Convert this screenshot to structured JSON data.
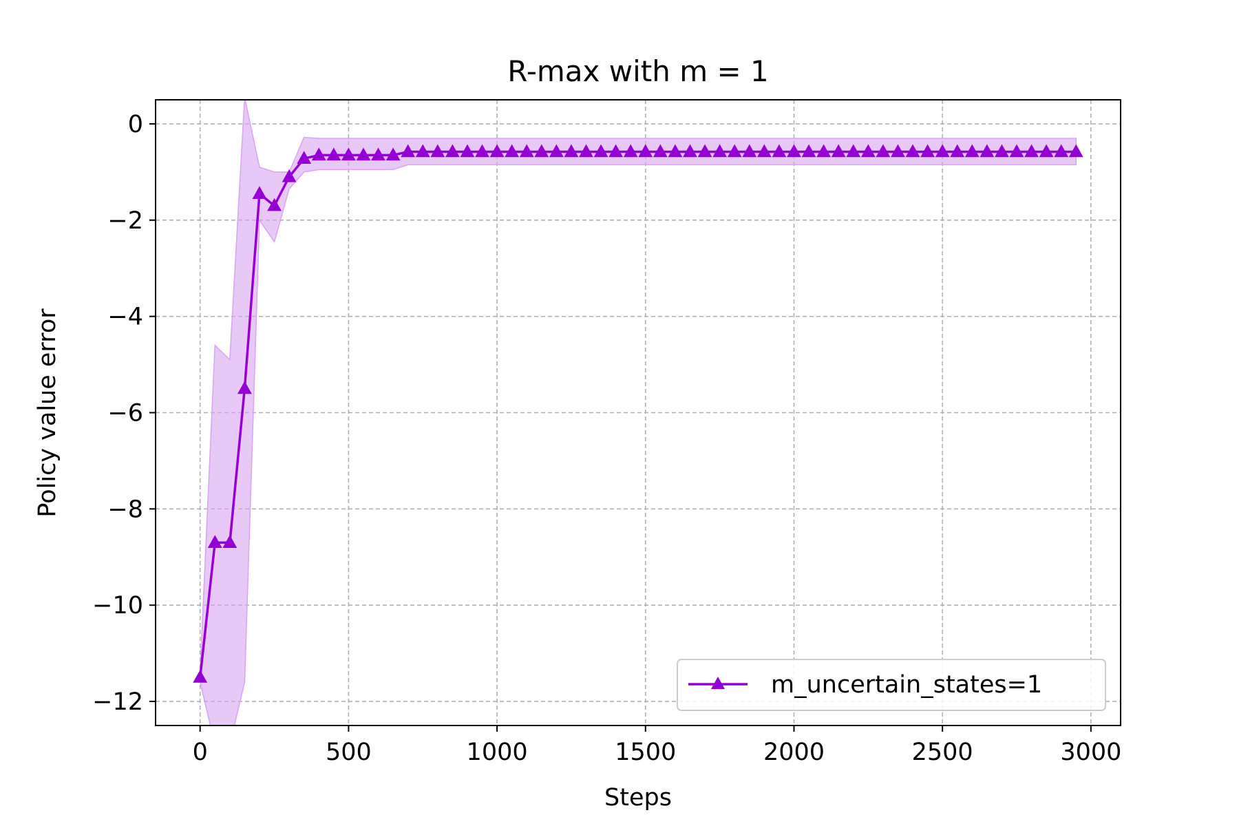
{
  "chart_data": {
    "type": "line",
    "title": "R-max with m = 1",
    "xlabel": "Steps",
    "ylabel": "Policy value error",
    "xlim": [
      -150,
      3100
    ],
    "ylim": [
      -12.5,
      0.5
    ],
    "xticks": [
      0,
      500,
      1000,
      1500,
      2000,
      2500,
      3000
    ],
    "yticks": [
      0,
      -2,
      -4,
      -6,
      -8,
      -10,
      -12
    ],
    "xtick_labels": [
      "0",
      "500",
      "1000",
      "1500",
      "2000",
      "2500",
      "3000"
    ],
    "ytick_labels": [
      "0",
      "−2",
      "−4",
      "−6",
      "−8",
      "−10",
      "−12"
    ],
    "grid": true,
    "legend_position": "lower-right",
    "series": [
      {
        "name": "m_uncertain_states=1",
        "color": "#9400D3",
        "marker": "triangle-up",
        "x": [
          0,
          50,
          100,
          150,
          200,
          250,
          300,
          350,
          400,
          450,
          500,
          550,
          600,
          650,
          700,
          750,
          800,
          850,
          900,
          950,
          1000,
          1050,
          1100,
          1150,
          1200,
          1250,
          1300,
          1350,
          1400,
          1450,
          1500,
          1550,
          1600,
          1650,
          1700,
          1750,
          1800,
          1850,
          1900,
          1950,
          2000,
          2050,
          2100,
          2150,
          2200,
          2250,
          2300,
          2350,
          2400,
          2450,
          2500,
          2550,
          2600,
          2650,
          2700,
          2750,
          2800,
          2850,
          2900,
          2950
        ],
        "y": [
          -11.5,
          -8.7,
          -8.7,
          -5.5,
          -1.45,
          -1.7,
          -1.1,
          -0.72,
          -0.65,
          -0.65,
          -0.65,
          -0.65,
          -0.65,
          -0.65,
          -0.58,
          -0.58,
          -0.58,
          -0.58,
          -0.58,
          -0.58,
          -0.58,
          -0.58,
          -0.58,
          -0.58,
          -0.58,
          -0.58,
          -0.58,
          -0.58,
          -0.58,
          -0.58,
          -0.58,
          -0.58,
          -0.58,
          -0.58,
          -0.58,
          -0.58,
          -0.58,
          -0.58,
          -0.58,
          -0.58,
          -0.58,
          -0.58,
          -0.58,
          -0.58,
          -0.58,
          -0.58,
          -0.58,
          -0.58,
          -0.58,
          -0.58,
          -0.58,
          -0.58,
          -0.58,
          -0.58,
          -0.58,
          -0.58,
          -0.58,
          -0.58,
          -0.58,
          -0.58
        ],
        "band_lower": [
          -11.6,
          -12.9,
          -12.9,
          -11.6,
          -2.0,
          -2.45,
          -1.35,
          -1.0,
          -0.95,
          -0.95,
          -0.95,
          -0.95,
          -0.95,
          -0.95,
          -0.85,
          -0.85,
          -0.85,
          -0.85,
          -0.85,
          -0.85,
          -0.85,
          -0.85,
          -0.85,
          -0.85,
          -0.85,
          -0.85,
          -0.85,
          -0.85,
          -0.85,
          -0.85,
          -0.85,
          -0.85,
          -0.85,
          -0.85,
          -0.85,
          -0.85,
          -0.85,
          -0.85,
          -0.85,
          -0.85,
          -0.85,
          -0.85,
          -0.85,
          -0.85,
          -0.85,
          -0.85,
          -0.85,
          -0.85,
          -0.85,
          -0.85,
          -0.85,
          -0.85,
          -0.85,
          -0.85,
          -0.85,
          -0.85,
          -0.85,
          -0.85,
          -0.85,
          -0.85
        ],
        "band_upper": [
          -11.4,
          -4.6,
          -4.9,
          0.55,
          -0.9,
          -1.0,
          -1.0,
          -0.28,
          -0.3,
          -0.3,
          -0.3,
          -0.3,
          -0.3,
          -0.3,
          -0.3,
          -0.3,
          -0.3,
          -0.3,
          -0.3,
          -0.3,
          -0.3,
          -0.3,
          -0.3,
          -0.3,
          -0.3,
          -0.3,
          -0.3,
          -0.3,
          -0.3,
          -0.3,
          -0.3,
          -0.3,
          -0.3,
          -0.3,
          -0.3,
          -0.3,
          -0.3,
          -0.3,
          -0.3,
          -0.3,
          -0.3,
          -0.3,
          -0.3,
          -0.3,
          -0.3,
          -0.3,
          -0.3,
          -0.3,
          -0.3,
          -0.3,
          -0.3,
          -0.3,
          -0.3,
          -0.3,
          -0.3,
          -0.3,
          -0.3,
          -0.3,
          -0.3,
          -0.3
        ],
        "band_color": "#d9a3f0"
      }
    ]
  }
}
